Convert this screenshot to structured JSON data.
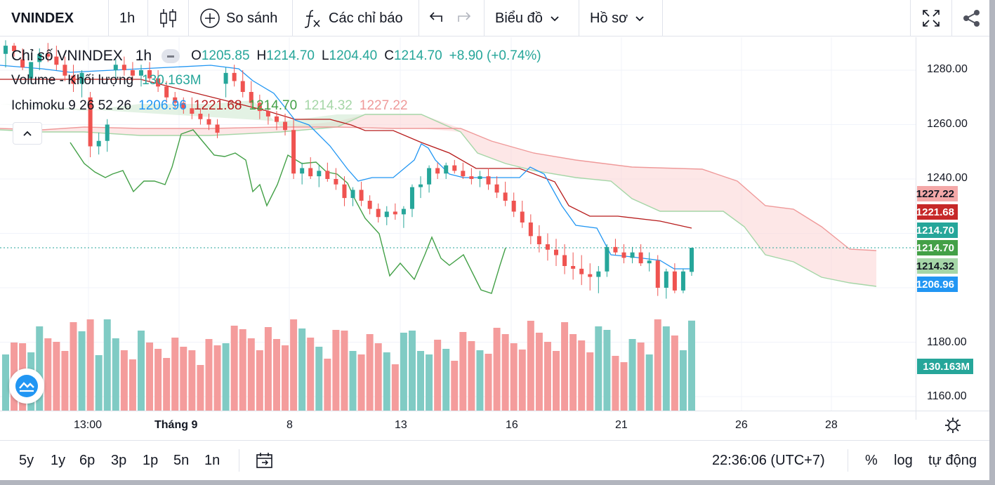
{
  "toolbar": {
    "symbol": "VNINDEX",
    "interval": "1h",
    "compare_label": "So sánh",
    "indicators_label": "Các chỉ báo",
    "chart_label": "Biểu đồ",
    "profile_label": "Hồ sơ"
  },
  "legend": {
    "title": "Chỉ số VNINDEX",
    "interval": "1h",
    "o_label": "O",
    "o_value": "1205.85",
    "h_label": "H",
    "h_value": "1214.70",
    "l_label": "L",
    "l_value": "1204.40",
    "c_label": "C",
    "c_value": "1214.70",
    "change": "+8.90 (+0.74%)",
    "volume_label": "Volume - Khối lượng",
    "volume_value": "130.163M",
    "ichimoku_label": "Ichimoku 9 26 52 26",
    "ichi_values": [
      "1206.96",
      "1221.68",
      "1214.70",
      "1214.32",
      "1227.22"
    ]
  },
  "colors": {
    "up": "#26a69a",
    "down": "#ef5350",
    "conversion": "#2196f3",
    "base": "#b71c1c",
    "lagging": "#43a047",
    "span_a": "#a5d6a7",
    "span_b": "#ef9a9a",
    "vol_up": "#80cbc4",
    "vol_down": "#f49c9c"
  },
  "price_axis": [
    "1280.00",
    "1260.00",
    "1240.00",
    "1180.00",
    "1160.00"
  ],
  "price_tags": [
    {
      "text": "1227.22",
      "bg": "#f4a8a8",
      "fg": "#131722"
    },
    {
      "text": "1221.68",
      "bg": "#c62828",
      "fg": "#ffffff"
    },
    {
      "text": "1214.70",
      "bg": "#26a69a",
      "fg": "#ffffff"
    },
    {
      "text": "1214.70",
      "bg": "#43a047",
      "fg": "#ffffff"
    },
    {
      "text": "1214.32",
      "bg": "#a5d6a7",
      "fg": "#131722"
    },
    {
      "text": "1206.96",
      "bg": "#2196f3",
      "fg": "#ffffff"
    },
    {
      "text": "130.163M",
      "bg": "#26a69a",
      "fg": "#ffffff"
    }
  ],
  "time_axis": [
    "13:00",
    "Tháng 9",
    "8",
    "13",
    "16",
    "21",
    "26",
    "28"
  ],
  "ranges": [
    "5y",
    "1y",
    "6p",
    "3p",
    "1p",
    "5n",
    "1n"
  ],
  "clock": "22:36:06 (UTC+7)",
  "bottom_right": {
    "percent": "%",
    "log": "log",
    "auto": "tự động"
  },
  "chart_data": {
    "type": "candlestick",
    "ylim": [
      1152,
      1295
    ],
    "last_close": 1214.7,
    "candles": [
      [
        1286,
        1291,
        1281,
        1289
      ],
      [
        1289,
        1290,
        1285,
        1287
      ],
      [
        1284,
        1288,
        1280,
        1281
      ],
      [
        1277,
        1283,
        1275,
        1283
      ],
      [
        1283,
        1288,
        1280,
        1286
      ],
      [
        1286,
        1290,
        1283,
        1285
      ],
      [
        1285,
        1289,
        1280,
        1282
      ],
      [
        1282,
        1285,
        1276,
        1278
      ],
      [
        1278,
        1282,
        1272,
        1275
      ],
      [
        1275,
        1280,
        1270,
        1279
      ],
      [
        1270,
        1272,
        1248,
        1252
      ],
      [
        1252,
        1257,
        1249,
        1254
      ],
      [
        1254,
        1262,
        1250,
        1260
      ],
      [
        1280,
        1284,
        1276,
        1282
      ],
      [
        1282,
        1285,
        1278,
        1280
      ],
      [
        1280,
        1283,
        1276,
        1278
      ],
      [
        1278,
        1282,
        1274,
        1280
      ],
      [
        1280,
        1283,
        1276,
        1277
      ],
      [
        1277,
        1280,
        1272,
        1274
      ],
      [
        1274,
        1276,
        1268,
        1270
      ],
      [
        1270,
        1272,
        1266,
        1268
      ],
      [
        1268,
        1270,
        1264,
        1266
      ],
      [
        1266,
        1270,
        1262,
        1264
      ],
      [
        1264,
        1266,
        1260,
        1262
      ],
      [
        1262,
        1264,
        1258,
        1260
      ],
      [
        1260,
        1262,
        1255,
        1257
      ],
      [
        1275,
        1281,
        1270,
        1279
      ],
      [
        1279,
        1282,
        1274,
        1276
      ],
      [
        1276,
        1280,
        1270,
        1272
      ],
      [
        1272,
        1276,
        1266,
        1268
      ],
      [
        1268,
        1271,
        1262,
        1265
      ],
      [
        1265,
        1268,
        1260,
        1263
      ],
      [
        1263,
        1265,
        1258,
        1261
      ],
      [
        1261,
        1264,
        1256,
        1258
      ],
      [
        1258,
        1262,
        1240,
        1242
      ],
      [
        1242,
        1246,
        1238,
        1244
      ],
      [
        1244,
        1248,
        1240,
        1241
      ],
      [
        1241,
        1245,
        1237,
        1243
      ],
      [
        1243,
        1246,
        1239,
        1240
      ],
      [
        1240,
        1244,
        1236,
        1238
      ],
      [
        1238,
        1241,
        1230,
        1233
      ],
      [
        1233,
        1237,
        1230,
        1236
      ],
      [
        1236,
        1239,
        1230,
        1232
      ],
      [
        1232,
        1234,
        1227,
        1229
      ],
      [
        1229,
        1231,
        1224,
        1226
      ],
      [
        1226,
        1230,
        1223,
        1228
      ],
      [
        1228,
        1231,
        1225,
        1227
      ],
      [
        1227,
        1230,
        1222,
        1229
      ],
      [
        1229,
        1238,
        1226,
        1237
      ],
      [
        1237,
        1241,
        1233,
        1238
      ],
      [
        1238,
        1245,
        1235,
        1244
      ],
      [
        1244,
        1246,
        1240,
        1242
      ],
      [
        1242,
        1246,
        1240,
        1245
      ],
      [
        1245,
        1247,
        1242,
        1243
      ],
      [
        1243,
        1246,
        1240,
        1241
      ],
      [
        1241,
        1244,
        1238,
        1240
      ],
      [
        1240,
        1243,
        1237,
        1241
      ],
      [
        1241,
        1244,
        1236,
        1238
      ],
      [
        1238,
        1241,
        1233,
        1235
      ],
      [
        1235,
        1239,
        1230,
        1232
      ],
      [
        1232,
        1235,
        1226,
        1228
      ],
      [
        1228,
        1232,
        1222,
        1224
      ],
      [
        1224,
        1227,
        1216,
        1219
      ],
      [
        1219,
        1223,
        1213,
        1216
      ],
      [
        1216,
        1220,
        1210,
        1214
      ],
      [
        1214,
        1218,
        1208,
        1212
      ],
      [
        1212,
        1216,
        1205,
        1208
      ],
      [
        1208,
        1213,
        1203,
        1207
      ],
      [
        1207,
        1212,
        1201,
        1205
      ],
      [
        1205,
        1209,
        1199,
        1204
      ],
      [
        1204,
        1208,
        1198,
        1206
      ],
      [
        1206,
        1216,
        1204,
        1215
      ],
      [
        1215,
        1218,
        1212,
        1213
      ],
      [
        1213,
        1216,
        1209,
        1211
      ],
      [
        1211,
        1215,
        1209,
        1213
      ],
      [
        1213,
        1216,
        1208,
        1209
      ],
      [
        1209,
        1213,
        1206,
        1210
      ],
      [
        1210,
        1212,
        1197,
        1200
      ],
      [
        1200,
        1207,
        1196,
        1206
      ],
      [
        1206,
        1209,
        1198,
        1199
      ],
      [
        1199,
        1207,
        1198,
        1206
      ],
      [
        1205.85,
        1214.7,
        1204.4,
        1214.7
      ]
    ],
    "volume": {
      "last": "130.163M"
    }
  }
}
